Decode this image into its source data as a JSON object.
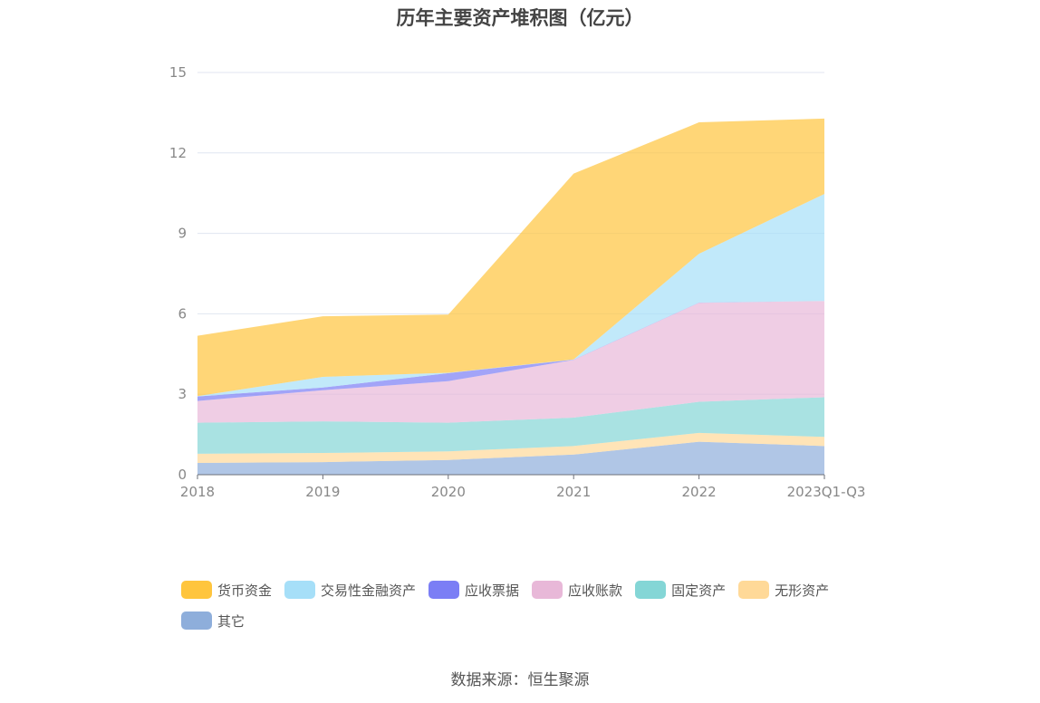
{
  "chart_data": {
    "type": "area",
    "stacked": true,
    "title": "历年主要资产堆积图（亿元）",
    "categories": [
      "2018",
      "2019",
      "2020",
      "2021",
      "2022",
      "2023Q1-Q3"
    ],
    "ylim": [
      0,
      15
    ],
    "yticks": [
      "0",
      "3",
      "6",
      "9",
      "12",
      "15"
    ],
    "grid": true,
    "legend_position": "bottom",
    "series": [
      {
        "name": "货币资金",
        "color": "#ffc53d",
        "values": [
          2.25,
          2.26,
          2.17,
          6.93,
          4.9,
          2.81
        ]
      },
      {
        "name": "交易性金融资产",
        "color": "#a6dff8",
        "values": [
          0.01,
          0.4,
          0.01,
          0.01,
          1.82,
          3.99
        ]
      },
      {
        "name": "应收票据",
        "color": "#7b7ef5",
        "values": [
          0.17,
          0.1,
          0.3,
          0.01,
          0.01,
          0.0
        ]
      },
      {
        "name": "应收账款",
        "color": "#e8b8d8",
        "values": [
          0.81,
          1.16,
          1.55,
          2.15,
          3.69,
          3.59
        ]
      },
      {
        "name": "固定资产",
        "color": "#84d6d6",
        "values": [
          1.16,
          1.18,
          1.07,
          1.06,
          1.16,
          1.48
        ]
      },
      {
        "name": "无形资产",
        "color": "#ffd998",
        "values": [
          0.34,
          0.34,
          0.32,
          0.32,
          0.33,
          0.34
        ]
      },
      {
        "name": "其它",
        "color": "#8eaedb",
        "values": [
          0.44,
          0.47,
          0.55,
          0.75,
          1.23,
          1.07
        ]
      }
    ]
  },
  "source": "数据来源：恒生聚源"
}
